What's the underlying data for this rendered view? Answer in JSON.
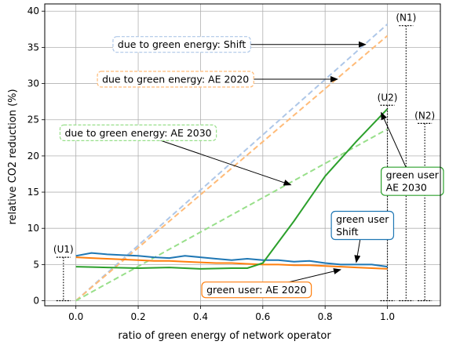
{
  "chart_data": {
    "type": "line",
    "xlabel": "ratio of green energy of network operator",
    "ylabel": "relative CO2 reduction (%)",
    "xlim": [
      -0.1,
      1.17
    ],
    "ylim": [
      -0.7,
      41
    ],
    "xticks": [
      0.0,
      0.2,
      0.4,
      0.6,
      0.8,
      1.0
    ],
    "xtick_labels": [
      "0.0",
      "0.2",
      "0.4",
      "0.6",
      "0.8",
      "1.0"
    ],
    "yticks": [
      0,
      5,
      10,
      15,
      20,
      25,
      30,
      35,
      40
    ],
    "ytick_labels": [
      "0",
      "5",
      "10",
      "15",
      "20",
      "25",
      "30",
      "35",
      "40"
    ],
    "grid": true,
    "series": [
      {
        "key": "green-shift-dashed",
        "color": "#aec7e8",
        "dashed": true,
        "x": [
          0.0,
          1.0
        ],
        "y": [
          0.0,
          38.2
        ]
      },
      {
        "key": "green-ae2020-dashed",
        "color": "#ffbb78",
        "dashed": true,
        "x": [
          0.0,
          1.0
        ],
        "y": [
          0.0,
          36.6
        ]
      },
      {
        "key": "green-ae2030-dashed",
        "color": "#98df8a",
        "dashed": true,
        "x": [
          0.0,
          1.0
        ],
        "y": [
          0.0,
          23.7
        ]
      },
      {
        "key": "user-shift",
        "color": "#1f77b4",
        "dashed": false,
        "x": [
          0.0,
          0.05,
          0.1,
          0.15,
          0.2,
          0.25,
          0.3,
          0.35,
          0.4,
          0.45,
          0.5,
          0.55,
          0.6,
          0.65,
          0.7,
          0.75,
          0.8,
          0.85,
          0.9,
          0.95,
          1.0
        ],
        "y": [
          6.2,
          6.6,
          6.4,
          6.3,
          6.2,
          6.0,
          5.9,
          6.2,
          6.0,
          5.8,
          5.6,
          5.8,
          5.6,
          5.6,
          5.4,
          5.5,
          5.2,
          5.0,
          5.0,
          5.0,
          4.7
        ]
      },
      {
        "key": "user-ae2020",
        "color": "#ff7f0e",
        "dashed": false,
        "x": [
          0.0,
          0.05,
          0.1,
          0.15,
          0.2,
          0.25,
          0.3,
          0.35,
          0.4,
          0.45,
          0.5,
          0.55,
          0.6,
          0.65,
          0.7,
          0.75,
          0.8,
          0.85,
          0.9,
          0.95,
          1.0
        ],
        "y": [
          6.0,
          5.9,
          5.8,
          5.7,
          5.6,
          5.5,
          5.5,
          5.4,
          5.3,
          5.2,
          5.2,
          5.1,
          5.0,
          5.0,
          4.9,
          4.9,
          4.8,
          4.7,
          4.6,
          4.5,
          4.4
        ]
      },
      {
        "key": "user-ae2030",
        "color": "#2ca02c",
        "dashed": false,
        "x": [
          0.0,
          0.1,
          0.2,
          0.3,
          0.4,
          0.5,
          0.55,
          0.6,
          0.7,
          0.8,
          0.9,
          1.0
        ],
        "y": [
          4.7,
          4.6,
          4.5,
          4.6,
          4.4,
          4.5,
          4.5,
          5.2,
          11.0,
          17.2,
          22.0,
          26.5
        ]
      }
    ],
    "annotations": [
      {
        "key": "ann-shift",
        "text": "due to green energy: Shift",
        "color": "#aec7e8",
        "box_x": 0.34,
        "box_y": 35.4,
        "arrow_to": [
          0.93,
          35.4
        ]
      },
      {
        "key": "ann-ae2020",
        "text": "due to green energy: AE 2020",
        "color": "#ffbb78",
        "box_x": 0.32,
        "box_y": 30.6,
        "arrow_to": [
          0.84,
          30.6
        ]
      },
      {
        "key": "ann-ae2030",
        "text": "due to green energy: AE 2030",
        "color": "#98df8a",
        "box_x": 0.2,
        "box_y": 23.2,
        "arrow_to": [
          0.69,
          16.0
        ]
      },
      {
        "key": "ann-user-ae2030",
        "text": "green user\nAE 2030",
        "color": "#2ca02c",
        "box_x": 1.08,
        "box_y": 16.5,
        "arrow_to": [
          0.98,
          26.0
        ]
      },
      {
        "key": "ann-user-shift",
        "text": "green user\nShift",
        "color": "#1f77b4",
        "box_x": 0.92,
        "box_y": 10.4,
        "arrow_to": [
          0.9,
          5.3
        ]
      },
      {
        "key": "ann-user-ae2020",
        "text": "green user: AE 2020",
        "color": "#ff7f0e",
        "box_x": 0.58,
        "box_y": 1.5,
        "arrow_to": [
          0.85,
          4.3
        ]
      }
    ],
    "brackets": [
      {
        "key": "bracket-u1",
        "label": "(U1)",
        "x": -0.04,
        "y_top": 6.0,
        "y_bottom": 0.0
      },
      {
        "key": "bracket-u2",
        "label": "(U2)",
        "x": 1.0,
        "y_top": 27.0,
        "y_bottom": 0.0
      },
      {
        "key": "bracket-n1",
        "label": "(N1)",
        "x": 1.06,
        "y_top": 38.0,
        "y_bottom": 0.0
      },
      {
        "key": "bracket-n2",
        "label": "(N2)",
        "x": 1.12,
        "y_top": 24.5,
        "y_bottom": 0.0
      }
    ]
  }
}
